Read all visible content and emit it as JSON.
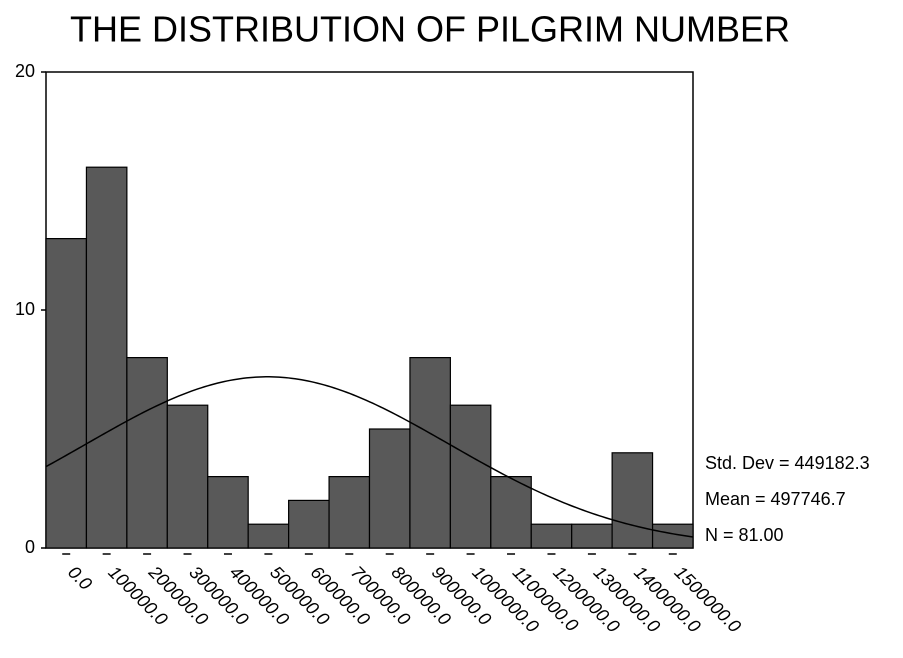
{
  "chart_data": {
    "type": "histogram",
    "title": "THE DISTRIBUTION OF PILGRIM NUMBER",
    "bins": [
      -50000,
      50000,
      150000,
      250000,
      350000,
      450000,
      550000,
      650000,
      750000,
      850000,
      950000,
      1050000,
      1150000,
      1250000,
      1350000,
      1450000,
      1550000
    ],
    "values": [
      13,
      16,
      8,
      6,
      3,
      1,
      2,
      3,
      5,
      8,
      6,
      3,
      1,
      1,
      4,
      1
    ],
    "color": "#595959",
    "xlim": [
      -50000,
      1550000
    ],
    "xticks": [
      {
        "value": 0,
        "label": "0.0"
      },
      {
        "value": 100000,
        "label": "100000.0"
      },
      {
        "value": 200000,
        "label": "200000.0"
      },
      {
        "value": 300000,
        "label": "300000.0"
      },
      {
        "value": 400000,
        "label": "400000.0"
      },
      {
        "value": 500000,
        "label": "500000.0"
      },
      {
        "value": 600000,
        "label": "600000.0"
      },
      {
        "value": 700000,
        "label": "700000.0"
      },
      {
        "value": 800000,
        "label": "800000.0"
      },
      {
        "value": 900000,
        "label": "900000.0"
      },
      {
        "value": 1000000,
        "label": "1000000.0"
      },
      {
        "value": 1100000,
        "label": "1100000.0"
      },
      {
        "value": 1200000,
        "label": "1200000.0"
      },
      {
        "value": 1300000,
        "label": "1300000.0"
      },
      {
        "value": 1400000,
        "label": "1400000.0"
      },
      {
        "value": 1500000,
        "label": "1500000.0"
      }
    ],
    "ylim": [
      0,
      20
    ],
    "yticks": [
      0,
      10,
      20
    ],
    "normal_curve": {
      "mean": 497746.7,
      "std_dev": 449182.3,
      "n": 81
    },
    "stats_labels": [
      "Std. Dev = 449182.3",
      "Mean = 497746.7",
      "N = 81.00"
    ]
  }
}
